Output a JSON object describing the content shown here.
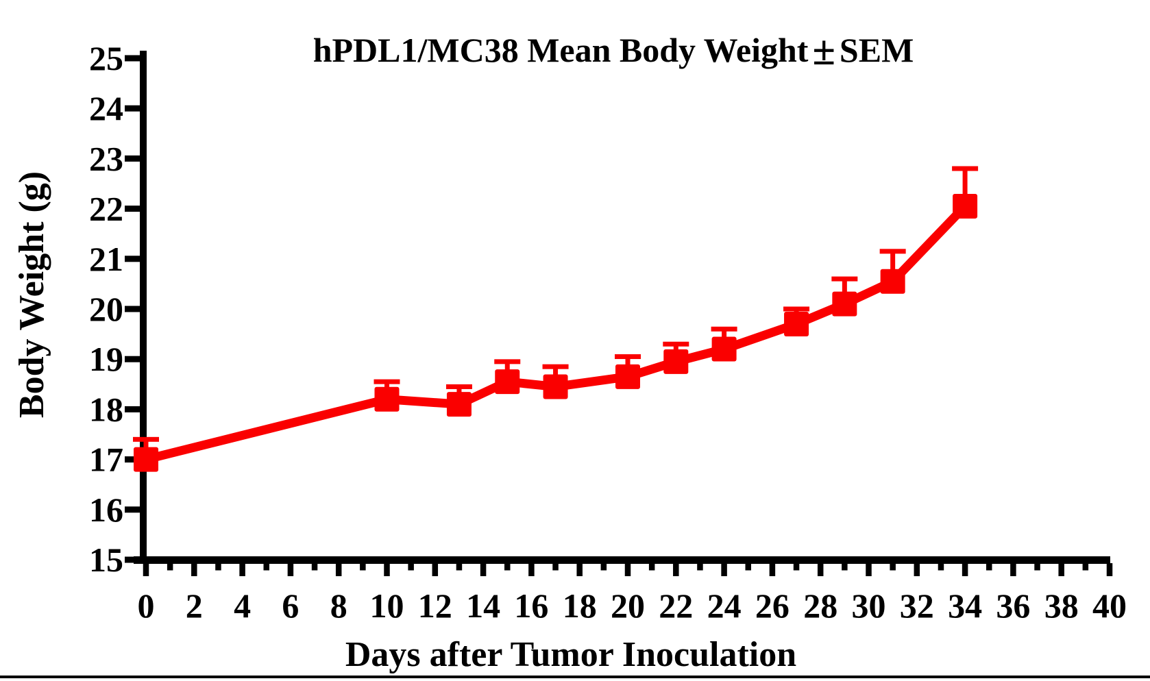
{
  "title": {
    "prefix": "hPDL1/MC38 Mean Body Weight",
    "pm": "±",
    "suffix": "SEM"
  },
  "axes": {
    "x_label": "Days after Tumor Inoculation",
    "y_label": "Body Weight (g)"
  },
  "chart_data": {
    "type": "line",
    "title": "hPDL1/MC38 Mean Body Weight ± SEM",
    "xlabel": "Days after Tumor Inoculation",
    "ylabel": "Body Weight (g)",
    "x": [
      0,
      10,
      13,
      15,
      17,
      20,
      22,
      24,
      27,
      29,
      31,
      34
    ],
    "series": [
      {
        "name": "hPDL1/MC38 mean body weight",
        "marker": "square",
        "color": "#fa0000",
        "values": [
          17.0,
          18.2,
          18.1,
          18.55,
          18.45,
          18.65,
          18.95,
          19.2,
          19.7,
          20.1,
          20.55,
          22.05
        ],
        "sem": [
          0.4,
          0.35,
          0.35,
          0.4,
          0.4,
          0.4,
          0.35,
          0.4,
          0.3,
          0.5,
          0.6,
          0.75
        ]
      }
    ],
    "error_bars": "upper-only",
    "xlim": [
      0,
      40
    ],
    "ylim": [
      15,
      25
    ],
    "x_major_ticks": [
      0,
      2,
      4,
      6,
      8,
      10,
      12,
      14,
      16,
      18,
      20,
      22,
      24,
      26,
      28,
      30,
      32,
      34,
      36,
      38,
      40
    ],
    "x_minor_tick_step": 1,
    "y_ticks": [
      15,
      16,
      17,
      18,
      19,
      20,
      21,
      22,
      23,
      24,
      25
    ],
    "grid": false,
    "legend": "none",
    "axis_color": "#000000",
    "background": "#ffffff"
  }
}
